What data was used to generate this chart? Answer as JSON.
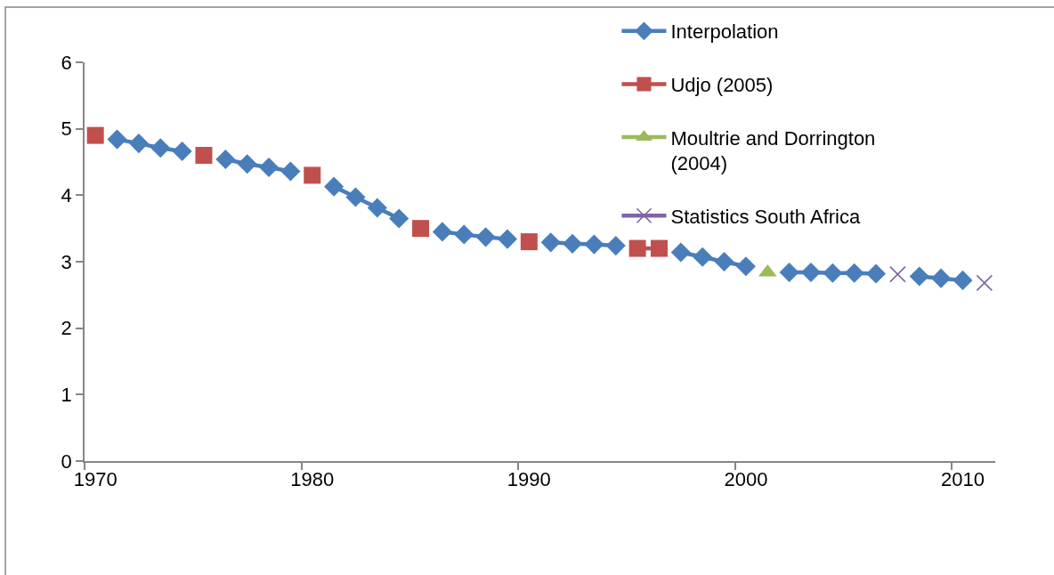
{
  "chart_data": {
    "type": "line",
    "categories": [
      "1970",
      null,
      null,
      null,
      null,
      null,
      null,
      null,
      null,
      null,
      "1980",
      null,
      null,
      null,
      null,
      null,
      null,
      null,
      null,
      null,
      "1990",
      null,
      null,
      null,
      null,
      null,
      null,
      null,
      null,
      null,
      "2000",
      null,
      null,
      null,
      null,
      null,
      null,
      null,
      null,
      null,
      "2010",
      null
    ],
    "ylim": [
      0,
      6
    ],
    "yticks": [
      0,
      1,
      2,
      3,
      4,
      5,
      6
    ],
    "legend": "top right",
    "series": [
      {
        "name": "Interpolation",
        "color": "#4a7ebb",
        "marker": "diamond",
        "values": [
          null,
          4.84,
          4.78,
          4.71,
          4.66,
          null,
          4.54,
          4.47,
          4.42,
          4.36,
          null,
          4.13,
          3.97,
          3.81,
          3.65,
          null,
          3.45,
          3.41,
          3.37,
          3.34,
          null,
          3.29,
          3.27,
          3.26,
          3.24,
          null,
          null,
          3.14,
          3.07,
          3.0,
          2.93,
          null,
          2.84,
          2.84,
          2.83,
          2.83,
          2.82,
          null,
          2.78,
          2.75,
          2.72,
          null
        ]
      },
      {
        "name": "Udjo (2005)",
        "color": "#c0504d",
        "marker": "square",
        "values": [
          4.9,
          null,
          null,
          null,
          null,
          4.6,
          null,
          null,
          null,
          null,
          4.3,
          null,
          null,
          null,
          null,
          3.5,
          null,
          null,
          null,
          null,
          3.3,
          null,
          null,
          null,
          null,
          3.2,
          3.2,
          null,
          null,
          null,
          null,
          null,
          null,
          null,
          null,
          null,
          null,
          null,
          null,
          null,
          null,
          null
        ]
      },
      {
        "name": "Moultrie and Dorrington (2004)",
        "color": "#9bbb59",
        "marker": "triangle",
        "values": [
          null,
          null,
          null,
          null,
          null,
          null,
          null,
          null,
          null,
          null,
          null,
          null,
          null,
          null,
          null,
          null,
          null,
          null,
          null,
          null,
          null,
          null,
          null,
          null,
          null,
          null,
          null,
          null,
          null,
          null,
          null,
          2.84,
          null,
          null,
          null,
          null,
          null,
          null,
          null,
          null,
          null,
          null
        ]
      },
      {
        "name": "Statistics South Africa",
        "color": "#8064a2",
        "marker": "cross",
        "values": [
          null,
          null,
          null,
          null,
          null,
          null,
          null,
          null,
          null,
          null,
          null,
          null,
          null,
          null,
          null,
          null,
          null,
          null,
          null,
          null,
          null,
          null,
          null,
          null,
          null,
          null,
          null,
          null,
          null,
          null,
          null,
          null,
          null,
          null,
          null,
          null,
          null,
          2.81,
          null,
          null,
          null,
          2.68
        ]
      }
    ]
  }
}
